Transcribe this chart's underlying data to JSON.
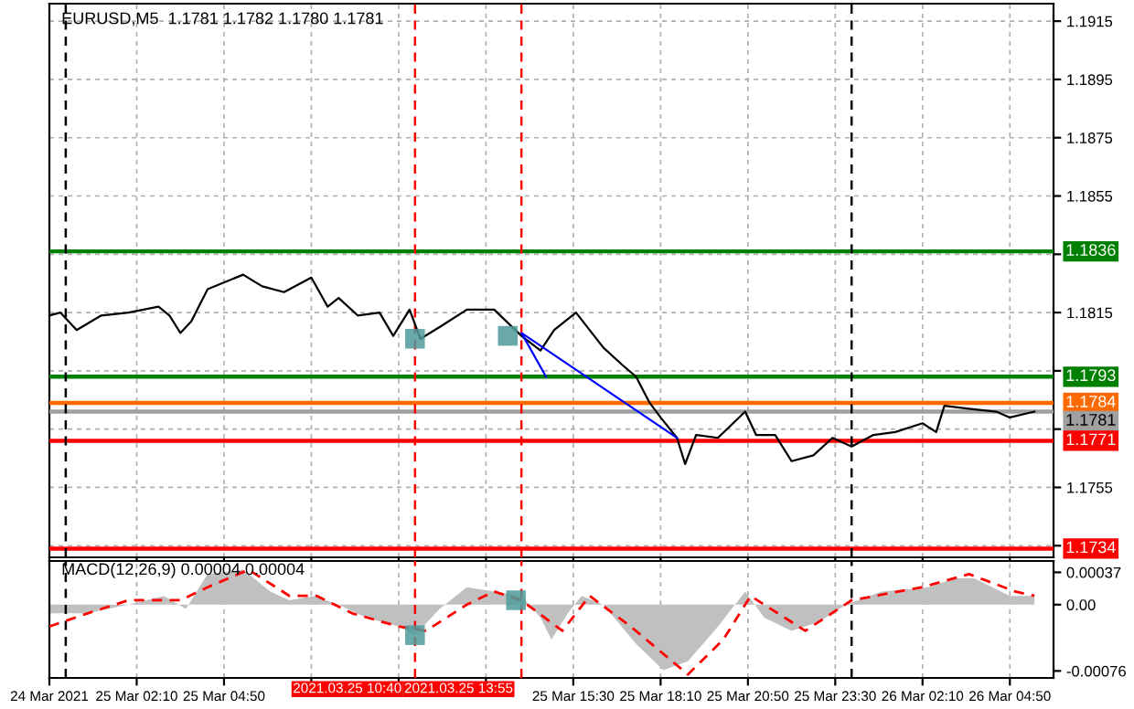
{
  "chart_data": [
    {
      "type": "line",
      "title": "EURUSD,M5  1.1781 1.1782 1.1780 1.1781",
      "xlim": [
        "2021-03-24T23:30",
        "2021-03-26T06:10"
      ],
      "ylim": [
        1.1731,
        1.1921
      ],
      "xticks": [
        {
          "value": "2021-03-24T23:30",
          "label": null
        },
        {
          "value": "2021-03-25T02:10",
          "label": null
        },
        {
          "value": "2021-03-25T04:50",
          "label": null
        },
        {
          "value": "2021-03-25T07:30",
          "label": null
        },
        {
          "value": "2021-03-25T10:10",
          "label": null
        },
        {
          "value": "2021-03-25T12:50",
          "label": null
        },
        {
          "value": "2021-03-25T15:30",
          "label": null
        },
        {
          "value": "2021-03-25T18:10",
          "label": null
        },
        {
          "value": "2021-03-25T20:50",
          "label": null
        },
        {
          "value": "2021-03-25T23:30",
          "label": null
        },
        {
          "value": "2021-03-26T02:10",
          "label": null
        },
        {
          "value": "2021-03-26T04:50",
          "label": null
        }
      ],
      "yticks": [
        {
          "value": 1.1735,
          "label": null
        },
        1.1755,
        {
          "value": 1.1775,
          "label": null
        },
        {
          "value": 1.1795,
          "label": null
        },
        1.1815,
        {
          "value": 1.1835,
          "label": null
        },
        1.1855,
        1.1875,
        1.1895,
        1.1915
      ],
      "tick_labels": "y",
      "grid": true,
      "series": [
        {
          "color": "#000000",
          "x": [
            "2021-03-24T23:30",
            "2021-03-24T23:50",
            "2021-03-25T00:20",
            "2021-03-25T01:05",
            "2021-03-25T01:55",
            "2021-03-25T02:50",
            "2021-03-25T03:10",
            "2021-03-25T03:30",
            "2021-03-25T03:50",
            "2021-03-25T04:20",
            "2021-03-25T05:25",
            "2021-03-25T06:00",
            "2021-03-25T06:40",
            "2021-03-25T07:30",
            "2021-03-25T08:00",
            "2021-03-25T08:20",
            "2021-03-25T08:55",
            "2021-03-25T09:35",
            "2021-03-25T10:00",
            "2021-03-25T10:30",
            "2021-03-25T10:50",
            "2021-03-25T11:25",
            "2021-03-25T12:15",
            "2021-03-25T13:05",
            "2021-03-25T13:55",
            "2021-03-25T14:30",
            "2021-03-25T14:55",
            "2021-03-25T15:35",
            "2021-03-25T16:25",
            "2021-03-25T17:00",
            "2021-03-25T17:25",
            "2021-03-25T17:50",
            "2021-03-25T18:10",
            "2021-03-25T18:40",
            "2021-03-25T18:55",
            "2021-03-25T19:15",
            "2021-03-25T19:55",
            "2021-03-25T20:45",
            "2021-03-25T21:05",
            "2021-03-25T21:40",
            "2021-03-25T22:10",
            "2021-03-25T22:50",
            "2021-03-25T23:25",
            "2021-03-26T00:00",
            "2021-03-26T00:40",
            "2021-03-26T01:20",
            "2021-03-26T02:10",
            "2021-03-26T02:35",
            "2021-03-26T02:50",
            "2021-03-26T03:35",
            "2021-03-26T04:25",
            "2021-03-26T04:50",
            "2021-03-26T05:35"
          ],
          "values": [
            1.1814,
            1.1815,
            1.1809,
            1.1814,
            1.1815,
            1.1817,
            1.1814,
            1.1808,
            1.1812,
            1.1823,
            1.1828,
            1.1824,
            1.1822,
            1.1827,
            1.1817,
            1.182,
            1.1814,
            1.1815,
            1.1807,
            1.1816,
            1.1806,
            1.181,
            1.1816,
            1.1816,
            1.1807,
            1.1802,
            1.1809,
            1.1815,
            1.1803,
            1.1797,
            1.1793,
            1.1784,
            1.1779,
            1.1772,
            1.1763,
            1.1773,
            1.1772,
            1.1781,
            1.1773,
            1.1773,
            1.1764,
            1.1766,
            1.1772,
            1.1769,
            1.1773,
            1.1774,
            1.1777,
            1.1774,
            1.1783,
            1.1782,
            1.1781,
            1.1779,
            1.1781
          ]
        },
        {
          "color": "#0000ff",
          "x": [
            "2021-03-25T14:40",
            "2021-03-25T13:55",
            "2021-03-25T18:40"
          ],
          "values": [
            1.1793,
            1.1808,
            1.1772
          ]
        },
        {
          "type": "scatter",
          "marker": "square",
          "color": "#4f9a9a",
          "x": [
            "2021-03-25T10:40",
            "2021-03-25T13:30"
          ],
          "values": [
            1.1806,
            1.1807
          ]
        }
      ],
      "ref_lines": [
        {
          "axis": "y",
          "value": 1.1836,
          "label": "1.1836",
          "color": "#008000"
        },
        {
          "axis": "y",
          "value": 1.1793,
          "label": "1.1793",
          "color": "#008000"
        },
        {
          "axis": "y",
          "value": 1.1784,
          "label": "1.1784",
          "color": "#ff6a00"
        },
        {
          "axis": "y",
          "value": 1.1781,
          "label": "1.1781",
          "color": "#a0a0a0"
        },
        {
          "axis": "y",
          "value": 1.1771,
          "label": "1.1771",
          "color": "#ff0000"
        },
        {
          "axis": "y",
          "value": 1.1734,
          "label": "1.1734",
          "color": "#ff0000"
        },
        {
          "axis": "x",
          "value": "2021-03-25T00:00",
          "color": "#000000",
          "line_style": "dashed"
        },
        {
          "axis": "x",
          "value": "2021-03-26T00:00",
          "color": "#000000",
          "line_style": "dashed"
        },
        {
          "axis": "x",
          "value": "2021-03-25T10:40",
          "color": "#ff0000",
          "line_style": "dashed"
        },
        {
          "axis": "x",
          "value": "2021-03-25T13:55",
          "color": "#ff0000",
          "line_style": "dashed"
        }
      ]
    },
    {
      "type": "area",
      "title": "MACD(12,26,9) 0.00004 0.00004",
      "xlim": [
        "2021-03-24T23:30",
        "2021-03-26T06:10"
      ],
      "ylim": [
        -0.00084,
        0.0005
      ],
      "xticks": [
        {
          "value": "2021-03-24T23:30",
          "label": "24 Mar 2021"
        },
        {
          "value": "2021-03-25T02:10",
          "label": "25 Mar 02:10"
        },
        {
          "value": "2021-03-25T04:50",
          "label": "25 Mar 04:50"
        },
        {
          "value": "2021-03-25T07:30",
          "label": null
        },
        {
          "value": "2021-03-25T10:10",
          "label": null
        },
        {
          "value": "2021-03-25T12:50",
          "label": null
        },
        {
          "value": "2021-03-25T15:30",
          "label": "25 Mar 15:30"
        },
        {
          "value": "2021-03-25T18:10",
          "label": "25 Mar 18:10"
        },
        {
          "value": "2021-03-25T20:50",
          "label": "25 Mar 20:50"
        },
        {
          "value": "2021-03-25T23:30",
          "label": "25 Mar 23:30"
        },
        {
          "value": "2021-03-26T02:10",
          "label": "26 Mar 02:10"
        },
        {
          "value": "2021-03-26T04:50",
          "label": "26 Mar 04:50"
        }
      ],
      "yticks": [
        {
          "value": -0.00076,
          "label": "-0.00076"
        },
        {
          "value": 0,
          "label": "0.00"
        },
        {
          "value": 0.00037,
          "label": "0.00037"
        }
      ],
      "grid": "x",
      "series": [
        {
          "color": "#c0c0c0",
          "x": [
            "2021-03-24T23:30",
            "2021-03-25T00:40",
            "2021-03-25T01:55",
            "2021-03-25T03:00",
            "2021-03-25T03:40",
            "2021-03-25T04:20",
            "2021-03-25T05:25",
            "2021-03-25T06:15",
            "2021-03-25T06:50",
            "2021-03-25T07:35",
            "2021-03-25T08:20",
            "2021-03-25T09:10",
            "2021-03-25T10:10",
            "2021-03-25T10:40",
            "2021-03-25T11:25",
            "2021-03-25T12:15",
            "2021-03-25T13:05",
            "2021-03-25T13:55",
            "2021-03-25T14:30",
            "2021-03-25T14:50",
            "2021-03-25T15:20",
            "2021-03-25T15:45",
            "2021-03-25T16:25",
            "2021-03-25T17:25",
            "2021-03-25T18:15",
            "2021-03-25T19:00",
            "2021-03-25T19:55",
            "2021-03-25T20:45",
            "2021-03-25T21:20",
            "2021-03-25T22:10",
            "2021-03-25T23:00",
            "2021-03-25T23:50",
            "2021-03-26T00:55",
            "2021-03-26T02:20",
            "2021-03-26T03:10",
            "2021-03-26T03:45",
            "2021-03-26T04:50",
            "2021-03-26T05:35"
          ],
          "values": [
            -0.0001,
            -0.0001,
            0.0,
            0.0001,
            -5e-05,
            0.00035,
            0.0004,
            0.00015,
            5e-05,
            0.0001,
            0.0,
            -0.00015,
            -0.00025,
            -0.00035,
            -5e-05,
            0.0002,
            0.00015,
            0.0001,
            -0.00015,
            -0.0004,
            -0.0001,
            0.0001,
            0.0,
            -0.00045,
            -0.00075,
            -0.00065,
            -0.00025,
            0.00015,
            -0.00015,
            -0.0003,
            -0.0002,
            0.0,
            0.00015,
            0.0002,
            0.0003,
            0.0003,
            0.0001,
            0.0001
          ]
        },
        {
          "type": "line",
          "color": "#ff0000",
          "line_style": "dashed",
          "x": [
            "2021-03-24T23:30",
            "2021-03-25T00:40",
            "2021-03-25T01:55",
            "2021-03-25T03:30",
            "2021-03-25T04:20",
            "2021-03-25T05:35",
            "2021-03-25T06:50",
            "2021-03-25T07:40",
            "2021-03-25T08:45",
            "2021-03-25T10:10",
            "2021-03-25T11:00",
            "2021-03-25T12:15",
            "2021-03-25T13:05",
            "2021-03-25T13:55",
            "2021-03-25T15:10",
            "2021-03-25T16:00",
            "2021-03-25T17:15",
            "2021-03-25T19:00",
            "2021-03-25T20:05",
            "2021-03-25T20:55",
            "2021-03-25T22:35",
            "2021-03-26T00:00",
            "2021-03-26T02:10",
            "2021-03-26T03:35",
            "2021-03-26T05:00",
            "2021-03-26T05:35"
          ],
          "values": [
            -0.00025,
            -0.0001,
            5e-05,
            5e-05,
            0.0002,
            0.0004,
            0.0001,
            0.0001,
            -0.0001,
            -0.00025,
            -0.0003,
            0.0,
            0.00015,
            5e-05,
            -0.0003,
            0.0001,
            -0.00025,
            -0.0008,
            -0.0004,
            0.0001,
            -0.0003,
            5e-05,
            0.0002,
            0.00035,
            0.00015,
            0.0001
          ]
        },
        {
          "type": "scatter",
          "marker": "square",
          "color": "#4f9a9a",
          "x": [
            "2021-03-25T10:40",
            "2021-03-25T13:45"
          ],
          "values": [
            -0.00035,
            5e-05
          ]
        }
      ],
      "ref_lines": [
        {
          "axis": "x",
          "value": "2021-03-25T00:00",
          "color": "#000000",
          "line_style": "dashed"
        },
        {
          "axis": "x",
          "value": "2021-03-26T00:00",
          "color": "#000000",
          "line_style": "dashed"
        },
        {
          "axis": "x",
          "value": "2021-03-25T10:40",
          "label": "2021.03.25 10:40",
          "color": "#ff0000",
          "line_style": "dashed"
        },
        {
          "axis": "x",
          "value": "2021-03-25T13:55",
          "label": "2021.03.25 13:55",
          "color": "#ff0000",
          "line_style": "dashed"
        }
      ]
    }
  ]
}
